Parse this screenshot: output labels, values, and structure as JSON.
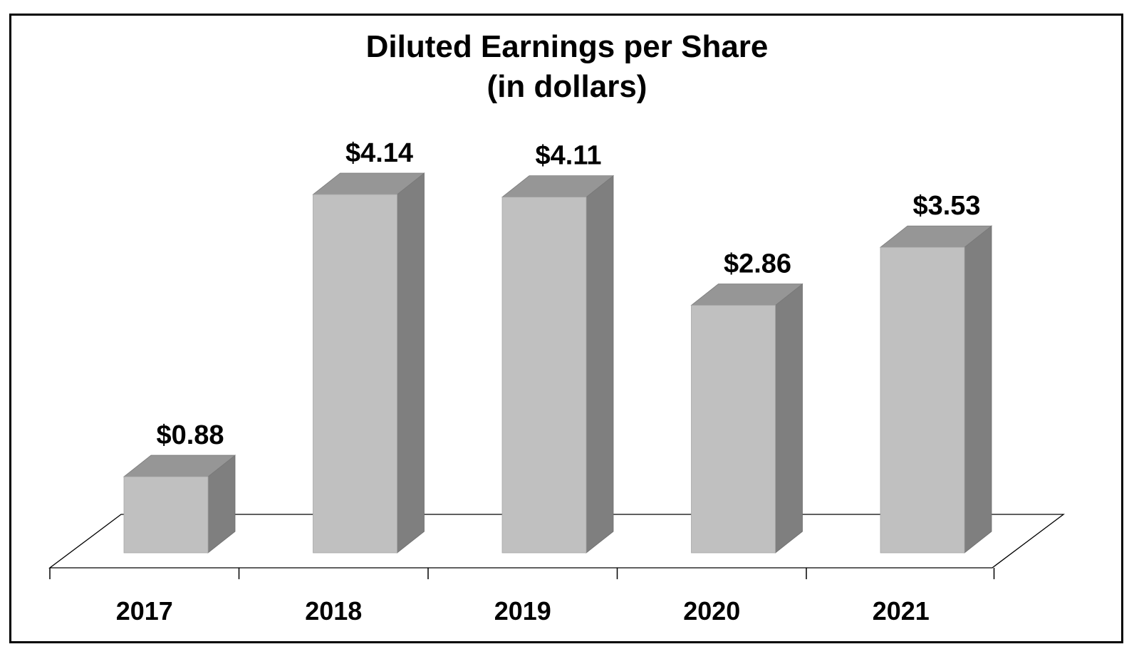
{
  "chart_data": {
    "type": "bar",
    "title": "Diluted Earnings per Share",
    "subtitle": "(in dollars)",
    "categories": [
      "2017",
      "2018",
      "2019",
      "2020",
      "2021"
    ],
    "values": [
      0.88,
      4.14,
      4.11,
      2.86,
      3.53
    ],
    "data_labels": [
      "$0.88",
      "$4.14",
      "$4.11",
      "$2.86",
      "$3.53"
    ],
    "xlabel": "",
    "ylabel": "",
    "ylim": [
      0,
      5
    ],
    "grid": false,
    "legend": "none",
    "style": "3d-column",
    "colors": {
      "bar_front": "#c0c0c0",
      "bar_top": "#969696",
      "bar_side": "#7f7f7f",
      "floor_line": "#000000",
      "text": "#000000"
    }
  }
}
